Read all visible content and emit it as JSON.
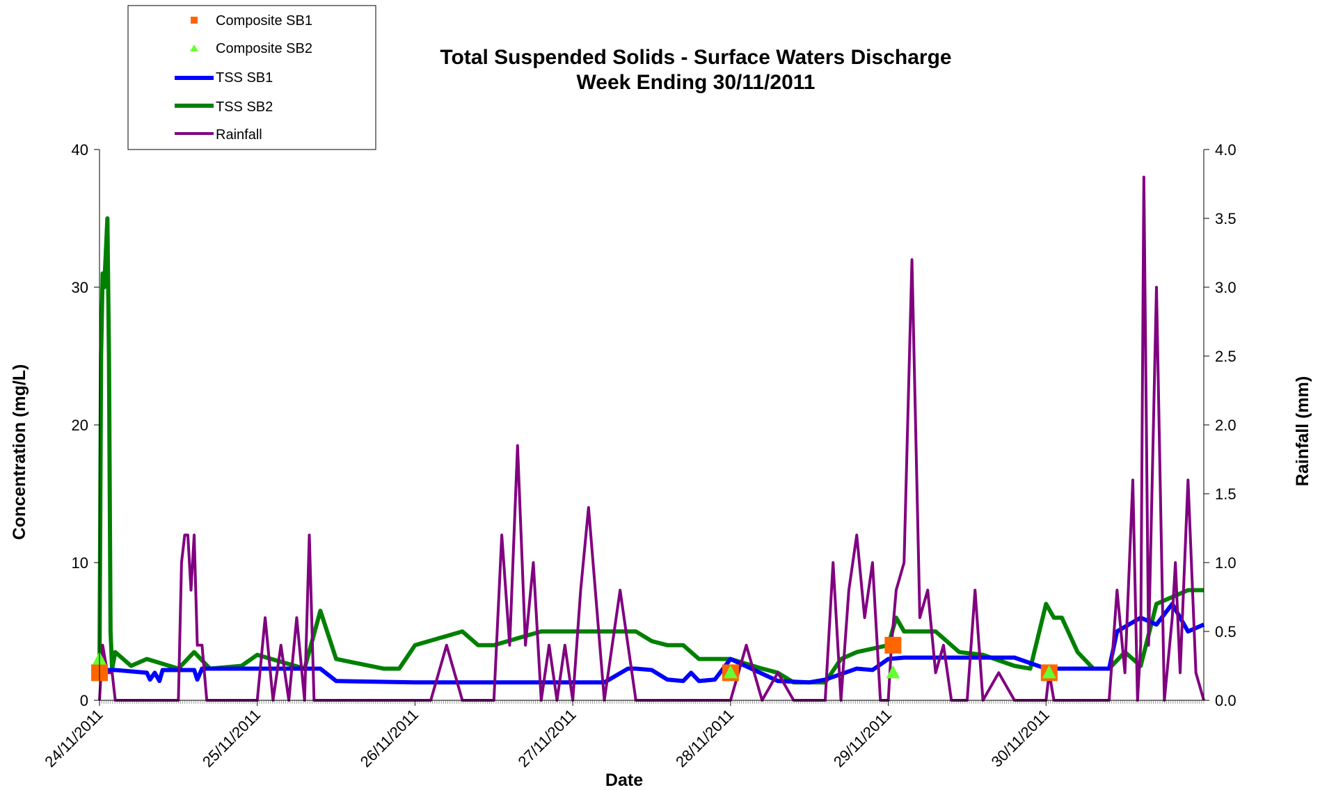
{
  "chart_data": {
    "type": "line",
    "title": "Total Suspended Solids - Surface Waters Discharge",
    "subtitle": "Week Ending 30/11/2011",
    "xlabel": "Date",
    "ylabel": "Concentration (mg/L)",
    "y2label": "Rainfall (mm)",
    "xlim": [
      0,
      7
    ],
    "ylim": [
      0,
      40
    ],
    "y2lim": [
      0,
      4.0
    ],
    "x_tick_labels": [
      "24/11/2011",
      "25/11/2011",
      "26/11/2011",
      "27/11/2011",
      "28/11/2011",
      "29/11/2011",
      "30/11/2011"
    ],
    "y_tick_labels": [
      "0",
      "10",
      "20",
      "30",
      "40"
    ],
    "y2_tick_labels": [
      "0.0",
      "0.5",
      "1.0",
      "1.5",
      "2.0",
      "2.5",
      "3.0",
      "3.5",
      "4.0"
    ],
    "legend_position": "top-left",
    "series": [
      {
        "name": "Composite SB1",
        "kind": "marker-square",
        "color": "#ff6600",
        "x": [
          0.0,
          4.0,
          5.03,
          6.02
        ],
        "y": [
          2.0,
          2.0,
          4.0,
          2.0
        ]
      },
      {
        "name": "Composite SB2",
        "kind": "marker-triangle",
        "color": "#66ff33",
        "x": [
          0.0,
          4.0,
          5.03,
          6.02
        ],
        "y": [
          3.0,
          2.0,
          2.0,
          2.0
        ]
      },
      {
        "name": "TSS SB1",
        "kind": "line",
        "color": "#0000ff",
        "axis": "left",
        "x": [
          0,
          0.1,
          0.3,
          0.32,
          0.35,
          0.38,
          0.4,
          0.6,
          0.62,
          0.65,
          0.7,
          0.8,
          1.4,
          1.5,
          2.0,
          3.0,
          3.2,
          3.35,
          3.4,
          3.5,
          3.6,
          3.7,
          3.75,
          3.8,
          3.9,
          4.0,
          4.3,
          4.5,
          4.6,
          4.8,
          4.9,
          5.0,
          5.1,
          5.5,
          5.8,
          6.0,
          6.2,
          6.3,
          6.4,
          6.45,
          6.6,
          6.7,
          6.8,
          6.9,
          7.0
        ],
        "y": [
          2.2,
          2.2,
          2.0,
          1.5,
          2.0,
          1.4,
          2.2,
          2.2,
          1.5,
          2.3,
          2.3,
          2.3,
          2.3,
          1.4,
          1.3,
          1.3,
          1.3,
          2.3,
          2.3,
          2.2,
          1.5,
          1.4,
          2.0,
          1.4,
          1.5,
          3.0,
          1.4,
          1.3,
          1.5,
          2.3,
          2.2,
          3.0,
          3.1,
          3.1,
          3.1,
          2.3,
          2.3,
          2.3,
          2.3,
          5.0,
          6.0,
          5.5,
          7.0,
          5.0,
          5.5
        ]
      },
      {
        "name": "TSS SB2",
        "kind": "line",
        "color": "#008000",
        "axis": "left",
        "x": [
          0,
          0.01,
          0.02,
          0.03,
          0.05,
          0.06,
          0.07,
          0.08,
          0.1,
          0.2,
          0.3,
          0.5,
          0.6,
          0.7,
          0.9,
          1.0,
          1.3,
          1.4,
          1.5,
          1.8,
          1.9,
          2.0,
          2.3,
          2.4,
          2.5,
          2.8,
          2.9,
          3.2,
          3.4,
          3.5,
          3.6,
          3.7,
          3.8,
          3.9,
          4.0,
          4.2,
          4.3,
          4.4,
          4.6,
          4.7,
          4.8,
          5.0,
          5.05,
          5.1,
          5.3,
          5.45,
          5.6,
          5.8,
          5.9,
          6.0,
          6.05,
          6.1,
          6.2,
          6.3,
          6.4,
          6.5,
          6.6,
          6.7,
          6.8,
          6.9,
          7.0
        ],
        "y": [
          2.3,
          25.0,
          31.0,
          30.0,
          35.0,
          25.0,
          5.0,
          2.3,
          3.5,
          2.5,
          3.0,
          2.3,
          3.5,
          2.3,
          2.5,
          3.3,
          2.3,
          6.5,
          3.0,
          2.3,
          2.3,
          4.0,
          5.0,
          4.0,
          4.0,
          5.0,
          5.0,
          5.0,
          5.0,
          4.3,
          4.0,
          4.0,
          3.0,
          3.0,
          3.0,
          2.3,
          2.0,
          1.3,
          1.3,
          3.0,
          3.5,
          4.0,
          6.0,
          5.0,
          5.0,
          3.5,
          3.3,
          2.5,
          2.3,
          7.0,
          6.0,
          6.0,
          3.5,
          2.3,
          2.3,
          3.5,
          2.5,
          7.0,
          7.5,
          8.0,
          8.0
        ]
      },
      {
        "name": "Rainfall",
        "kind": "line",
        "color": "#800080",
        "axis": "right",
        "x": [
          0,
          0.02,
          0.05,
          0.08,
          0.1,
          0.15,
          0.2,
          0.3,
          0.4,
          0.5,
          0.52,
          0.54,
          0.56,
          0.58,
          0.6,
          0.62,
          0.65,
          0.68,
          0.7,
          0.8,
          0.9,
          1.0,
          1.05,
          1.1,
          1.15,
          1.2,
          1.25,
          1.3,
          1.33,
          1.36,
          1.4,
          1.5,
          1.6,
          1.8,
          2.0,
          2.1,
          2.2,
          2.3,
          2.4,
          2.5,
          2.55,
          2.6,
          2.65,
          2.7,
          2.75,
          2.8,
          2.85,
          2.9,
          2.95,
          3.0,
          3.05,
          3.1,
          3.2,
          3.3,
          3.4,
          3.6,
          3.8,
          4.0,
          4.1,
          4.2,
          4.3,
          4.4,
          4.5,
          4.6,
          4.65,
          4.7,
          4.75,
          4.8,
          4.85,
          4.9,
          4.95,
          5.0,
          5.02,
          5.05,
          5.1,
          5.15,
          5.2,
          5.25,
          5.3,
          5.35,
          5.4,
          5.5,
          5.55,
          5.6,
          5.7,
          5.8,
          6.0,
          6.02,
          6.05,
          6.1,
          6.2,
          6.3,
          6.4,
          6.45,
          6.5,
          6.55,
          6.58,
          6.6,
          6.62,
          6.65,
          6.7,
          6.75,
          6.8,
          6.82,
          6.85,
          6.9,
          6.95,
          7.0
        ],
        "y": [
          0.0,
          0.4,
          0.2,
          0.2,
          0.0,
          0.0,
          0.0,
          0.0,
          0.0,
          0.0,
          1.0,
          1.2,
          1.2,
          0.8,
          1.2,
          0.4,
          0.4,
          0.0,
          0.0,
          0.0,
          0.0,
          0.0,
          0.6,
          0.0,
          0.4,
          0.0,
          0.6,
          0.0,
          1.2,
          0.0,
          0.0,
          0.0,
          0.0,
          0.0,
          0.0,
          0.0,
          0.4,
          0.0,
          0.0,
          0.0,
          1.2,
          0.4,
          1.85,
          0.4,
          1.0,
          0.0,
          0.4,
          0.0,
          0.4,
          0.0,
          0.8,
          1.4,
          0.0,
          0.8,
          0.0,
          0.0,
          0.0,
          0.0,
          0.4,
          0.0,
          0.2,
          0.0,
          0.0,
          0.0,
          1.0,
          0.0,
          0.8,
          1.2,
          0.6,
          1.0,
          0.0,
          0.0,
          0.4,
          0.8,
          1.0,
          3.2,
          0.6,
          0.8,
          0.2,
          0.4,
          0.0,
          0.0,
          0.8,
          0.0,
          0.2,
          0.0,
          0.0,
          0.2,
          0.0,
          0.0,
          0.0,
          0.0,
          0.0,
          0.8,
          0.2,
          1.6,
          0.0,
          0.4,
          3.8,
          0.4,
          3.0,
          0.0,
          0.6,
          1.0,
          0.2,
          1.6,
          0.2,
          0.0
        ]
      }
    ]
  }
}
